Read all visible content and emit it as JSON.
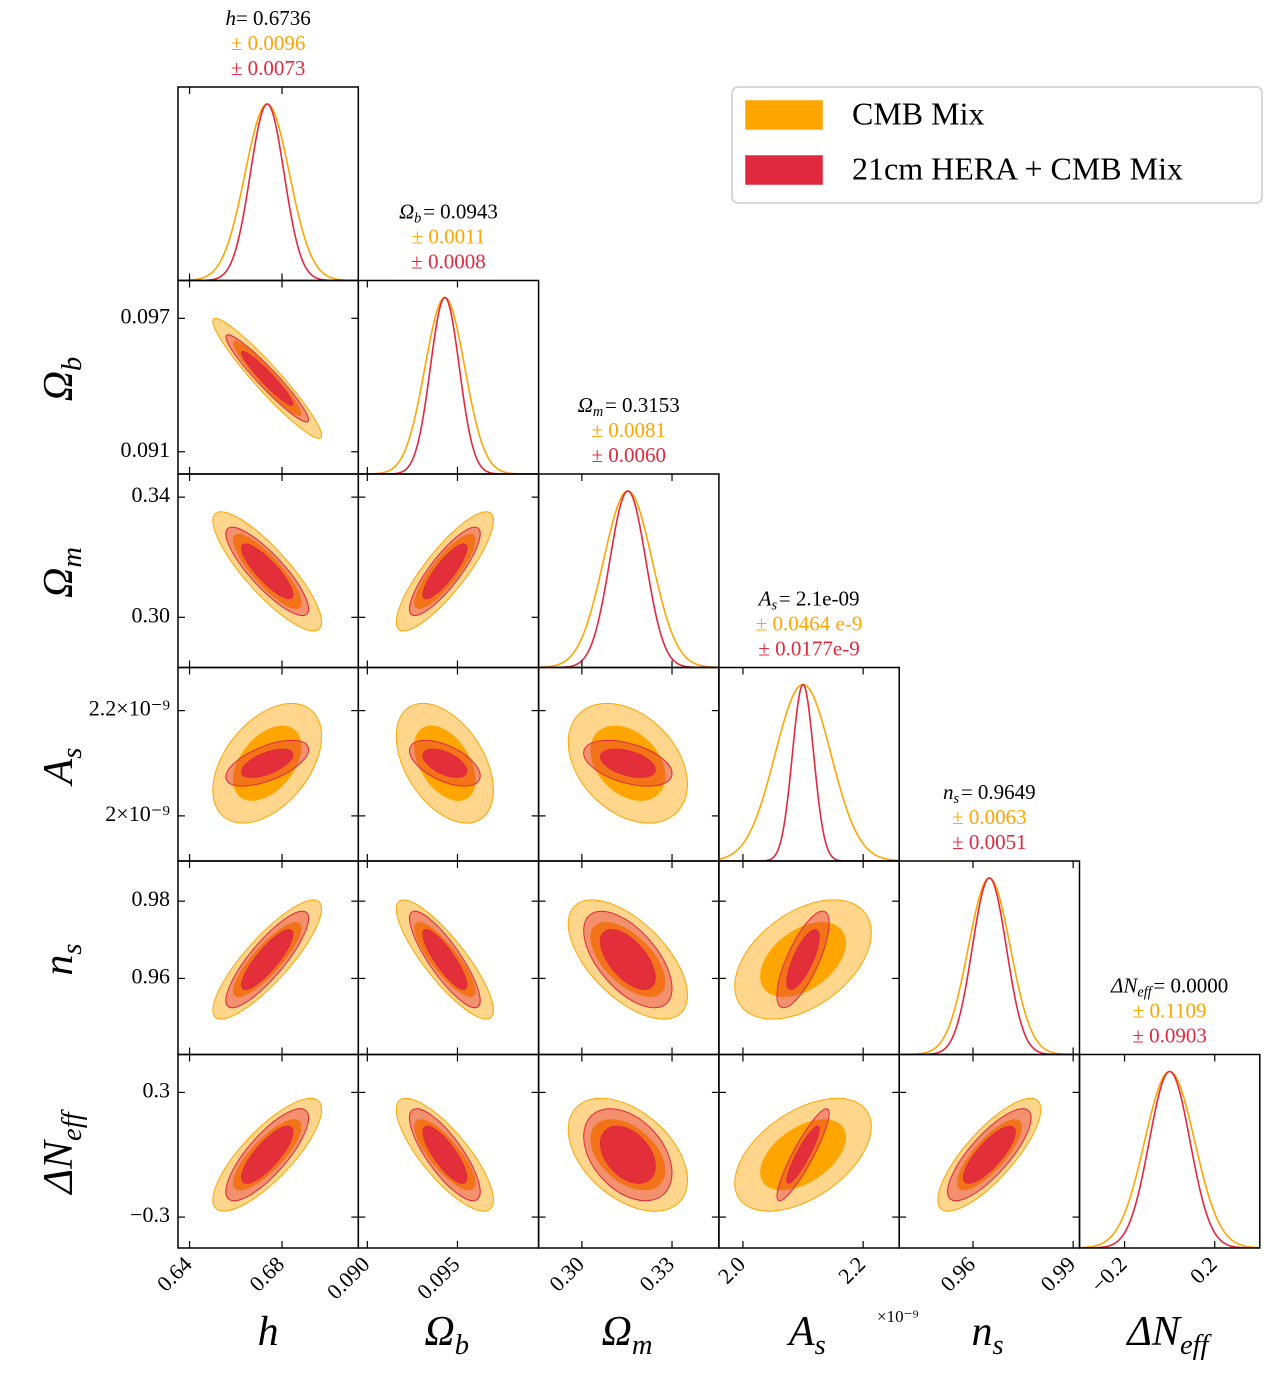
{
  "chart_data": {
    "type": "corner",
    "legend": "upper right",
    "series": [
      {
        "name": "CMB Mix",
        "color": "#ffa500",
        "correlations": [
          [
            -0.95
          ],
          [
            -0.85,
            0.85
          ],
          [
            0.45,
            -0.45,
            -0.35
          ],
          [
            0.85,
            -0.85,
            -0.6,
            0.45
          ],
          [
            0.8,
            -0.8,
            -0.45,
            0.5,
            0.8
          ]
        ]
      },
      {
        "name": "21cm HERA + CMB Mix",
        "color": "#e0283e",
        "correlations": [
          [
            -0.95
          ],
          [
            -0.85,
            0.85
          ],
          [
            0.6,
            -0.55,
            -0.45
          ],
          [
            0.85,
            -0.85,
            -0.6,
            0.75
          ],
          [
            0.8,
            -0.8,
            -0.4,
            0.9,
            0.8
          ]
        ]
      }
    ],
    "parameters": [
      {
        "symbol": "h",
        "mean": {
          "value": 0.6736,
          "label": "= 0.6736"
        },
        "sigma": [
          {
            "value": 0.0096,
            "label": "± 0.0096"
          },
          {
            "value": 0.0073,
            "label": "± 0.0073"
          }
        ],
        "xlim": [
          0.635,
          0.713
        ],
        "xticks": [
          0.64,
          0.68
        ]
      },
      {
        "symbol": "Ω",
        "subscript": "b",
        "mean": {
          "value": 0.0943,
          "label": "= 0.0943"
        },
        "sigma": [
          {
            "value": 0.0011,
            "label": "± 0.0011"
          },
          {
            "value": 0.0008,
            "label": "± 0.0008"
          }
        ],
        "xlim": [
          0.0895,
          0.0995
        ],
        "xticks": [
          {
            "value": 0.09,
            "label": "0.090"
          },
          {
            "value": 0.095,
            "label": "0.095"
          }
        ],
        "ylim": [
          0.09,
          0.0987
        ],
        "yticks": [
          0.097,
          0.091
        ]
      },
      {
        "symbol": "Ω",
        "subscript": "m",
        "mean": {
          "value": 0.3153,
          "label": "= 0.3153"
        },
        "sigma": [
          {
            "value": 0.0081,
            "label": "± 0.0081"
          },
          {
            "value": 0.006,
            "label": "± 0.0060"
          }
        ],
        "xlim": [
          0.2856,
          0.3456
        ],
        "xticks": [
          {
            "value": 0.3,
            "label": "0.30"
          },
          0.33
        ],
        "ylim": [
          0.2833,
          0.3477
        ],
        "yticks": [
          0.34,
          {
            "value": 0.3,
            "label": "0.30"
          }
        ]
      },
      {
        "symbol": "A",
        "subscript": "s",
        "mean": {
          "value": 2.1e-09,
          "label": "= 2.1e-09"
        },
        "sigma": [
          {
            "value": 4.64e-11,
            "label": "± 0.0464 e-9"
          },
          {
            "value": 1.77e-11,
            "label": "± 0.0177e-9"
          }
        ],
        "xlim": [
          1.96e-09,
          2.26e-09
        ],
        "xticks": [
          {
            "value": 2e-09,
            "label": "2.0"
          },
          {
            "value": 2.2e-09,
            "label": "2.2"
          }
        ],
        "offset_label": "×10⁻⁹",
        "ylim": [
          1.9143e-09,
          2.2819e-09
        ],
        "yticks": [
          {
            "value": 2.2e-09,
            "label": "2.2×10⁻⁹"
          },
          {
            "value": 2e-09,
            "label": "2×10⁻⁹"
          }
        ]
      },
      {
        "symbol": "n",
        "subscript": "s",
        "mean": {
          "value": 0.9649,
          "label": "= 0.9649"
        },
        "sigma": [
          {
            "value": 0.0063,
            "label": "± 0.0063"
          },
          {
            "value": 0.0051,
            "label": "± 0.0051"
          }
        ],
        "xlim": [
          0.9379,
          0.9919
        ],
        "xticks": [
          0.96,
          0.99
        ],
        "ylim": [
          0.9403,
          0.9904
        ],
        "yticks": [
          0.98,
          0.96
        ]
      },
      {
        "symbol": "ΔN",
        "subscript": "eff",
        "mean": {
          "value": 0.0,
          "label": "= 0.0000"
        },
        "sigma": [
          {
            "value": 0.1109,
            "label": "± 0.1109"
          },
          {
            "value": 0.0903,
            "label": "± 0.0903"
          }
        ],
        "xlim": [
          -0.4,
          0.4
        ],
        "xticks": [
          {
            "value": -0.2,
            "label": "−0.2"
          },
          0.2
        ],
        "ylim": [
          -0.4488,
          0.4824
        ],
        "yticks": [
          0.3,
          {
            "value": -0.3,
            "label": "−0.3"
          }
        ]
      }
    ]
  }
}
